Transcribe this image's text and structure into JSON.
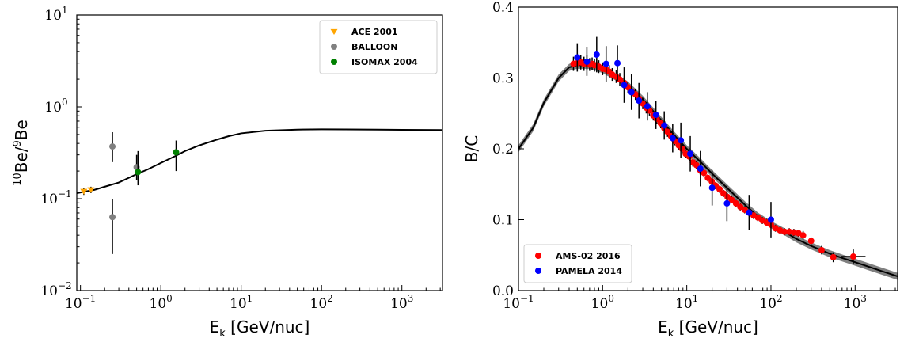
{
  "chart_data": [
    {
      "type": "scatter",
      "xscale": "log",
      "yscale": "log",
      "xlim": [
        0.09,
        3200
      ],
      "ylim": [
        0.01,
        10
      ],
      "xlabel_main": "E",
      "xlabel_sub": "k",
      "xlabel_rest": " [GeV/nuc]",
      "ylabel_sup": "10",
      "ylabel_mid": "Be/",
      "ylabel_sup2": "9",
      "ylabel_end": "Be",
      "legend_position": "upper right",
      "xticks": [
        {
          "value": 0.1,
          "base": "10",
          "exp": "−1"
        },
        {
          "value": 1,
          "base": "10",
          "exp": "0"
        },
        {
          "value": 10,
          "base": "10",
          "exp": "1"
        },
        {
          "value": 100,
          "base": "10",
          "exp": "2"
        },
        {
          "value": 1000,
          "base": "10",
          "exp": "3"
        }
      ],
      "yticks": [
        {
          "value": 0.01,
          "base": "10",
          "exp": "−2"
        },
        {
          "value": 0.1,
          "base": "10",
          "exp": "−1"
        },
        {
          "value": 1,
          "base": "10",
          "exp": "0"
        },
        {
          "value": 10,
          "base": "10",
          "exp": "1"
        }
      ],
      "model_curve": {
        "color": "#000000",
        "points": [
          [
            0.09,
            0.115
          ],
          [
            0.1,
            0.117
          ],
          [
            0.15,
            0.125
          ],
          [
            0.2,
            0.135
          ],
          [
            0.3,
            0.15
          ],
          [
            0.5,
            0.185
          ],
          [
            0.7,
            0.21
          ],
          [
            1,
            0.245
          ],
          [
            1.5,
            0.29
          ],
          [
            2,
            0.33
          ],
          [
            3,
            0.38
          ],
          [
            5,
            0.44
          ],
          [
            7,
            0.48
          ],
          [
            10,
            0.515
          ],
          [
            20,
            0.55
          ],
          [
            50,
            0.565
          ],
          [
            100,
            0.57
          ],
          [
            200,
            0.568
          ],
          [
            500,
            0.565
          ],
          [
            1000,
            0.562
          ],
          [
            3200,
            0.56
          ]
        ]
      },
      "series": [
        {
          "name": "ACE 2001",
          "marker": "triangle-down",
          "color": "#FFA500",
          "points": [
            {
              "x": 0.11,
              "y": 0.12,
              "ylo": 0.11,
              "yhi": 0.13
            },
            {
              "x": 0.135,
              "y": 0.125,
              "ylo": 0.115,
              "yhi": 0.135
            }
          ]
        },
        {
          "name": "BALLOON",
          "marker": "circle",
          "color": "#808080",
          "points": [
            {
              "x": 0.25,
              "y": 0.37,
              "ylo": 0.25,
              "yhi": 0.53
            },
            {
              "x": 0.25,
              "y": 0.063,
              "ylo": 0.025,
              "yhi": 0.1
            },
            {
              "x": 0.5,
              "y": 0.22,
              "ylo": 0.16,
              "yhi": 0.3
            }
          ]
        },
        {
          "name": "ISOMAX 2004",
          "marker": "circle",
          "color": "#008000",
          "points": [
            {
              "x": 0.52,
              "y": 0.195,
              "ylo": 0.14,
              "yhi": 0.33
            },
            {
              "x": 1.55,
              "y": 0.32,
              "ylo": 0.2,
              "yhi": 0.43
            }
          ]
        }
      ]
    },
    {
      "type": "scatter",
      "xscale": "log",
      "yscale": "linear",
      "xlim": [
        0.1,
        3200
      ],
      "ylim": [
        0,
        0.4
      ],
      "xlabel_main": "E",
      "xlabel_sub": "k",
      "xlabel_rest": " [GeV/nuc]",
      "ylabel": "B/C",
      "legend_position": "lower left",
      "xticks": [
        {
          "value": 0.1,
          "base": "10",
          "exp": "−1"
        },
        {
          "value": 1,
          "base": "10",
          "exp": "0"
        },
        {
          "value": 10,
          "base": "10",
          "exp": "1"
        },
        {
          "value": 100,
          "base": "10",
          "exp": "2"
        },
        {
          "value": 1000,
          "base": "10",
          "exp": "3"
        }
      ],
      "yticks": [
        "0.0",
        "0.1",
        "0.2",
        "0.3",
        "0.4"
      ],
      "model_curve": {
        "color": "#000000",
        "band_color": "#808080",
        "band_halfwidth": 0.005,
        "points": [
          [
            0.1,
            0.2
          ],
          [
            0.15,
            0.23
          ],
          [
            0.2,
            0.265
          ],
          [
            0.3,
            0.3
          ],
          [
            0.4,
            0.315
          ],
          [
            0.5,
            0.318
          ],
          [
            0.7,
            0.318
          ],
          [
            1,
            0.312
          ],
          [
            1.5,
            0.3
          ],
          [
            2,
            0.29
          ],
          [
            3,
            0.27
          ],
          [
            5,
            0.24
          ],
          [
            7,
            0.22
          ],
          [
            10,
            0.2
          ],
          [
            15,
            0.18
          ],
          [
            20,
            0.165
          ],
          [
            30,
            0.145
          ],
          [
            50,
            0.12
          ],
          [
            70,
            0.105
          ],
          [
            100,
            0.093
          ],
          [
            150,
            0.082
          ],
          [
            200,
            0.073
          ],
          [
            300,
            0.063
          ],
          [
            500,
            0.052
          ],
          [
            700,
            0.046
          ],
          [
            1000,
            0.04
          ],
          [
            1500,
            0.033
          ],
          [
            2000,
            0.028
          ],
          [
            3200,
            0.02
          ]
        ]
      },
      "series": [
        {
          "name": "AMS-02 2016",
          "marker": "circle",
          "color": "#FF0000",
          "points": [
            {
              "x": 0.45,
              "y": 0.32,
              "err": 0.01
            },
            {
              "x": 0.5,
              "y": 0.321,
              "err": 0.01
            },
            {
              "x": 0.55,
              "y": 0.322,
              "err": 0.01
            },
            {
              "x": 0.6,
              "y": 0.32,
              "err": 0.01
            },
            {
              "x": 0.65,
              "y": 0.322,
              "err": 0.01
            },
            {
              "x": 0.7,
              "y": 0.319,
              "err": 0.009
            },
            {
              "x": 0.75,
              "y": 0.32,
              "err": 0.009
            },
            {
              "x": 0.8,
              "y": 0.318,
              "err": 0.009
            },
            {
              "x": 0.85,
              "y": 0.318,
              "err": 0.009
            },
            {
              "x": 0.9,
              "y": 0.316,
              "err": 0.009
            },
            {
              "x": 1,
              "y": 0.313,
              "err": 0.009
            },
            {
              "x": 1.1,
              "y": 0.312,
              "err": 0.009
            },
            {
              "x": 1.2,
              "y": 0.309,
              "err": 0.009
            },
            {
              "x": 1.3,
              "y": 0.305,
              "err": 0.009
            },
            {
              "x": 1.45,
              "y": 0.302,
              "err": 0.009
            },
            {
              "x": 1.6,
              "y": 0.298,
              "err": 0.009
            },
            {
              "x": 1.8,
              "y": 0.293,
              "err": 0.008
            },
            {
              "x": 2,
              "y": 0.287,
              "err": 0.008
            },
            {
              "x": 2.2,
              "y": 0.281,
              "err": 0.008
            },
            {
              "x": 2.45,
              "y": 0.277,
              "err": 0.008
            },
            {
              "x": 2.7,
              "y": 0.271,
              "err": 0.008
            },
            {
              "x": 3,
              "y": 0.264,
              "err": 0.008
            },
            {
              "x": 3.3,
              "y": 0.258,
              "err": 0.008
            },
            {
              "x": 3.6,
              "y": 0.254,
              "err": 0.007
            },
            {
              "x": 4,
              "y": 0.247,
              "err": 0.007
            },
            {
              "x": 4.4,
              "y": 0.242,
              "err": 0.007
            },
            {
              "x": 4.9,
              "y": 0.236,
              "err": 0.007
            },
            {
              "x": 5.4,
              "y": 0.229,
              "err": 0.007
            },
            {
              "x": 5.9,
              "y": 0.224,
              "err": 0.007
            },
            {
              "x": 6.5,
              "y": 0.218,
              "err": 0.006
            },
            {
              "x": 7.2,
              "y": 0.211,
              "err": 0.006
            },
            {
              "x": 8,
              "y": 0.205,
              "err": 0.006
            },
            {
              "x": 8.8,
              "y": 0.2,
              "err": 0.006
            },
            {
              "x": 9.7,
              "y": 0.193,
              "err": 0.006
            },
            {
              "x": 10.7,
              "y": 0.189,
              "err": 0.006
            },
            {
              "x": 11.8,
              "y": 0.181,
              "err": 0.006
            },
            {
              "x": 13,
              "y": 0.177,
              "err": 0.006
            },
            {
              "x": 14.4,
              "y": 0.17,
              "err": 0.006
            },
            {
              "x": 16,
              "y": 0.166,
              "err": 0.005
            },
            {
              "x": 17.8,
              "y": 0.159,
              "err": 0.005
            },
            {
              "x": 19.8,
              "y": 0.154,
              "err": 0.005
            },
            {
              "x": 22,
              "y": 0.148,
              "err": 0.005
            },
            {
              "x": 24.5,
              "y": 0.143,
              "err": 0.005
            },
            {
              "x": 27.3,
              "y": 0.137,
              "err": 0.005
            },
            {
              "x": 30.5,
              "y": 0.132,
              "err": 0.005
            },
            {
              "x": 34.2,
              "y": 0.128,
              "err": 0.005
            },
            {
              "x": 38.4,
              "y": 0.123,
              "err": 0.005
            },
            {
              "x": 43.2,
              "y": 0.118,
              "err": 0.005
            },
            {
              "x": 48.7,
              "y": 0.114,
              "err": 0.005
            },
            {
              "x": 55,
              "y": 0.11,
              "err": 0.005
            },
            {
              "x": 62,
              "y": 0.106,
              "err": 0.005
            },
            {
              "x": 70,
              "y": 0.103,
              "err": 0.005
            },
            {
              "x": 79,
              "y": 0.099,
              "err": 0.005
            },
            {
              "x": 89,
              "y": 0.096,
              "err": 0.005
            },
            {
              "x": 100,
              "y": 0.093,
              "err": 0.005
            },
            {
              "x": 113,
              "y": 0.088,
              "err": 0.005
            },
            {
              "x": 128,
              "y": 0.085,
              "err": 0.005
            },
            {
              "x": 145,
              "y": 0.083,
              "err": 0.005
            },
            {
              "x": 165,
              "y": 0.083,
              "err": 0.005
            },
            {
              "x": 187,
              "y": 0.082,
              "err": 0.005
            },
            {
              "x": 212,
              "y": 0.081,
              "err": 0.005
            },
            {
              "x": 241,
              "y": 0.078,
              "err": 0.006
            },
            {
              "x": 300,
              "y": 0.07,
              "err": 0.005
            },
            {
              "x": 400,
              "y": 0.057,
              "err": 0.006
            },
            {
              "x": 550,
              "y": 0.047,
              "err": 0.007
            },
            {
              "x": 950,
              "y": 0.048,
              "err": 0.01
            }
          ]
        },
        {
          "name": "PAMELA 2014",
          "marker": "circle",
          "color": "#0000FF",
          "points": [
            {
              "x": 0.5,
              "y": 0.329,
              "err": 0.02
            },
            {
              "x": 0.65,
              "y": 0.323,
              "err": 0.02
            },
            {
              "x": 0.85,
              "y": 0.333,
              "err": 0.025
            },
            {
              "x": 1.1,
              "y": 0.32,
              "err": 0.025
            },
            {
              "x": 1.5,
              "y": 0.321,
              "err": 0.025
            },
            {
              "x": 1.8,
              "y": 0.29,
              "err": 0.025
            },
            {
              "x": 2.2,
              "y": 0.28,
              "err": 0.025
            },
            {
              "x": 2.7,
              "y": 0.268,
              "err": 0.025
            },
            {
              "x": 3.4,
              "y": 0.26,
              "err": 0.02
            },
            {
              "x": 4.3,
              "y": 0.248,
              "err": 0.02
            },
            {
              "x": 5.4,
              "y": 0.233,
              "err": 0.02
            },
            {
              "x": 6.8,
              "y": 0.215,
              "err": 0.02
            },
            {
              "x": 8.5,
              "y": 0.212,
              "err": 0.025
            },
            {
              "x": 11,
              "y": 0.193,
              "err": 0.025
            },
            {
              "x": 14.5,
              "y": 0.172,
              "err": 0.025
            },
            {
              "x": 20,
              "y": 0.145,
              "err": 0.025
            },
            {
              "x": 30,
              "y": 0.123,
              "err": 0.025
            },
            {
              "x": 55,
              "y": 0.11,
              "err": 0.025
            },
            {
              "x": 100,
              "y": 0.1,
              "err": 0.025
            }
          ]
        }
      ]
    }
  ]
}
